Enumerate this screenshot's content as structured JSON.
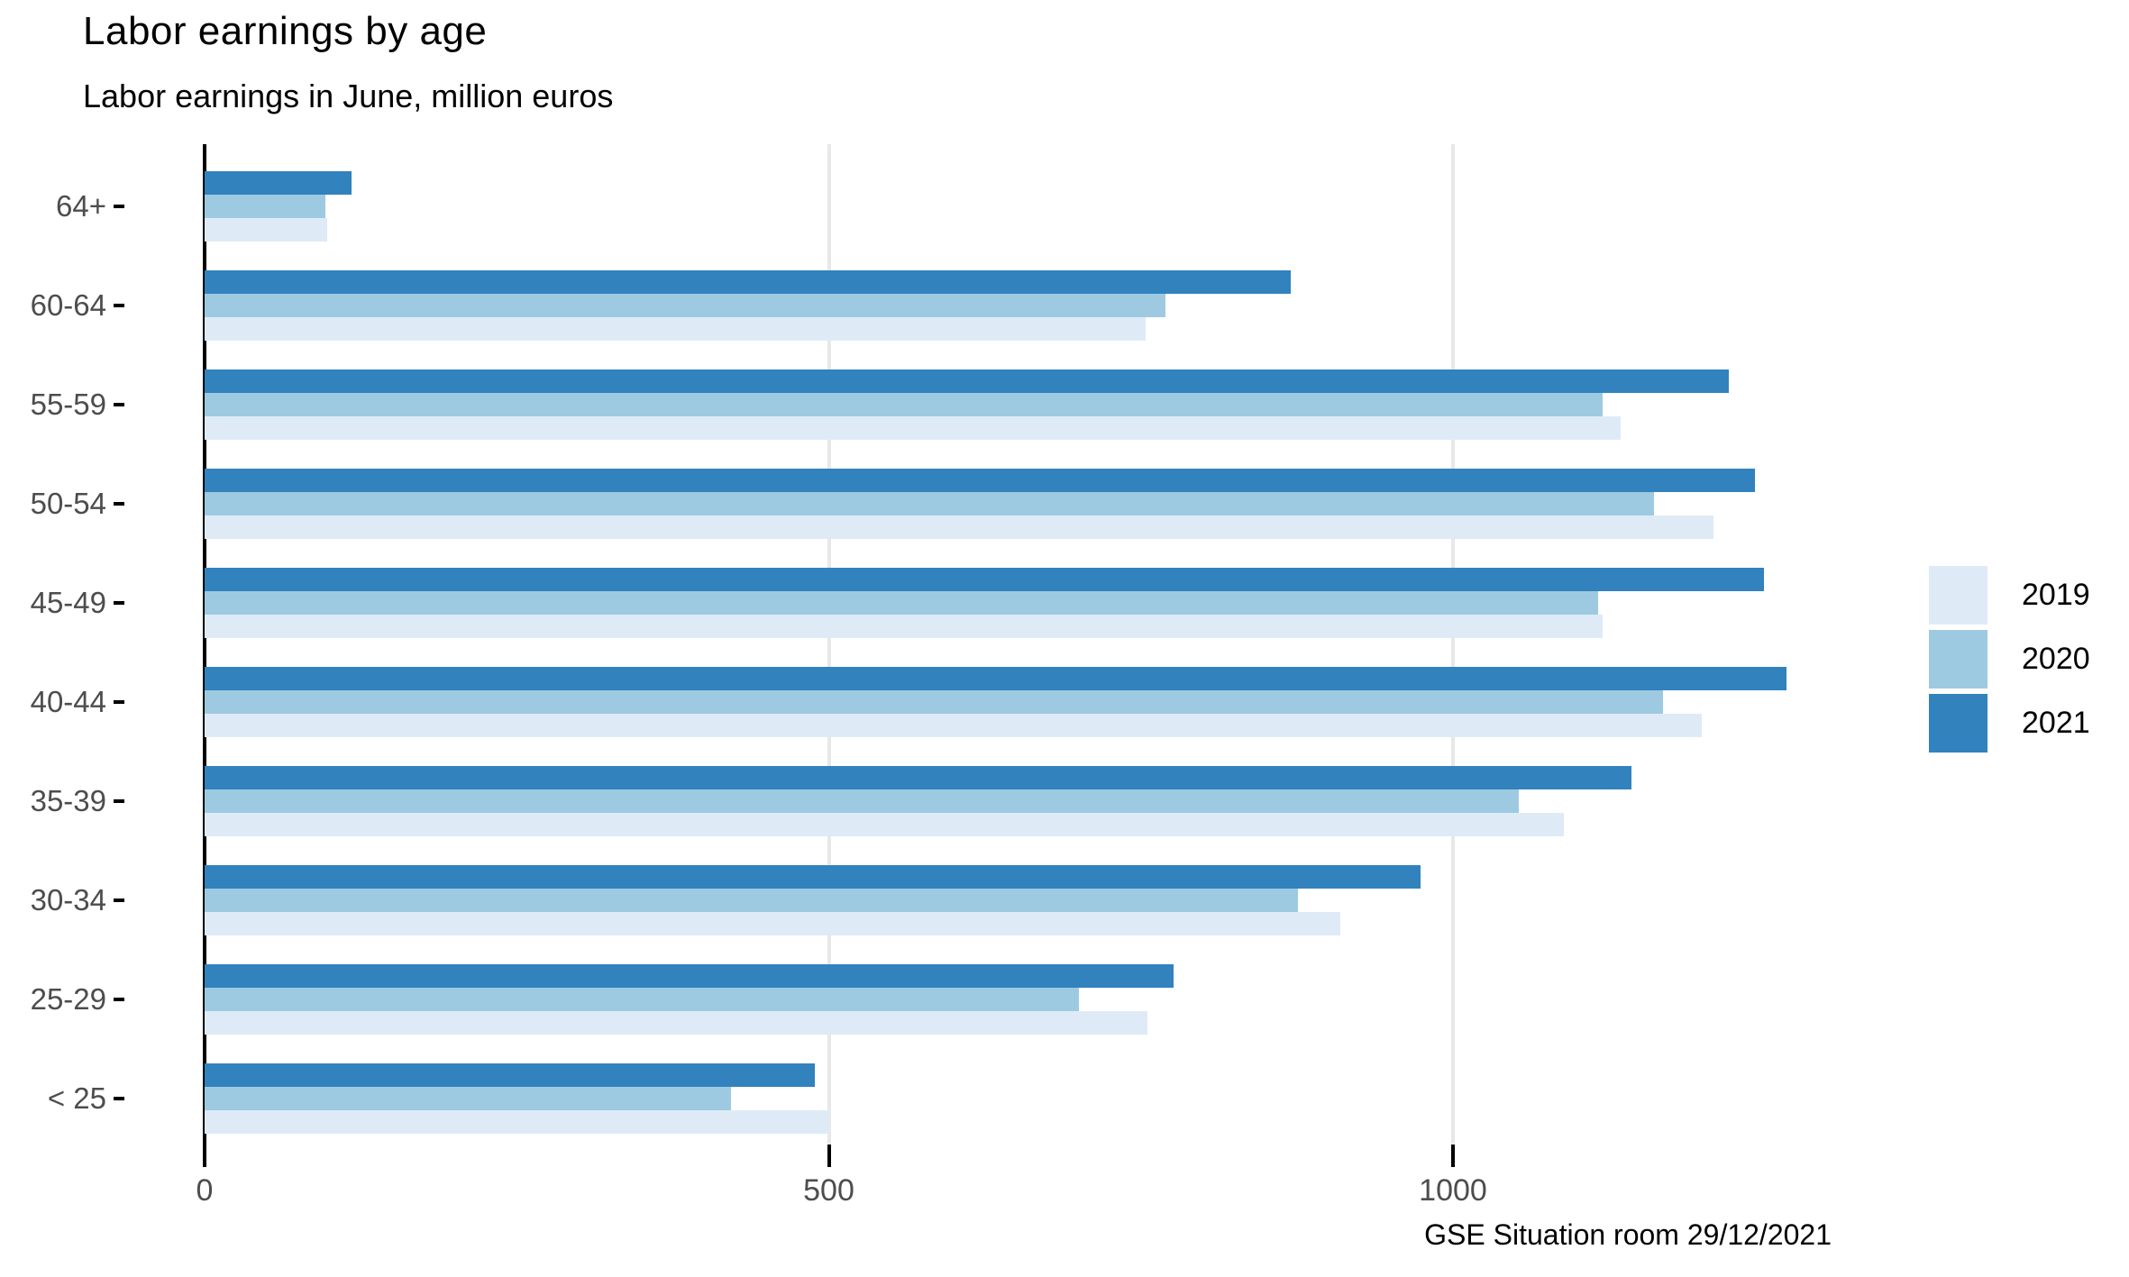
{
  "title": "Labor earnings by age",
  "subtitle": "Labor earnings in June, million euros",
  "caption": "GSE Situation room 29/12/2021",
  "colors": {
    "series_2019": "#deebf7",
    "series_2020": "#9ecae1",
    "series_2021": "#3182bd",
    "zero_axis_line": "#000000",
    "gridline": "#e8e8e8",
    "tick_label": "#4d4d4d"
  },
  "chart_data": {
    "type": "bar",
    "orientation": "horizontal",
    "title": "Labor earnings by age",
    "subtitle": "Labor earnings in June, million euros",
    "caption": "GSE Situation room 29/12/2021",
    "xlabel": "",
    "ylabel": "",
    "xlim": [
      0,
      1330
    ],
    "x_ticks": [
      0,
      500,
      1000
    ],
    "x_tick_labels": [
      "0",
      "500",
      "1000"
    ],
    "grid": "vertical-only",
    "legend_position": "right",
    "categories": [
      "64+",
      "60-64",
      "55-59",
      "50-54",
      "45-49",
      "40-44",
      "35-39",
      "30-34",
      "25-29",
      "< 25"
    ],
    "series": [
      {
        "name": "2019",
        "color": "#deebf7",
        "values": [
          98,
          754,
          1134,
          1209,
          1120,
          1199,
          1089,
          910,
          755,
          500
        ]
      },
      {
        "name": "2020",
        "color": "#9ecae1",
        "values": [
          97,
          770,
          1120,
          1161,
          1116,
          1168,
          1053,
          876,
          700,
          422
        ]
      },
      {
        "name": "2021",
        "color": "#3182bd",
        "values": [
          118,
          870,
          1221,
          1242,
          1249,
          1267,
          1143,
          974,
          776,
          489
        ]
      }
    ],
    "bar_draw_order_top_to_bottom": [
      "2021",
      "2020",
      "2019"
    ]
  }
}
